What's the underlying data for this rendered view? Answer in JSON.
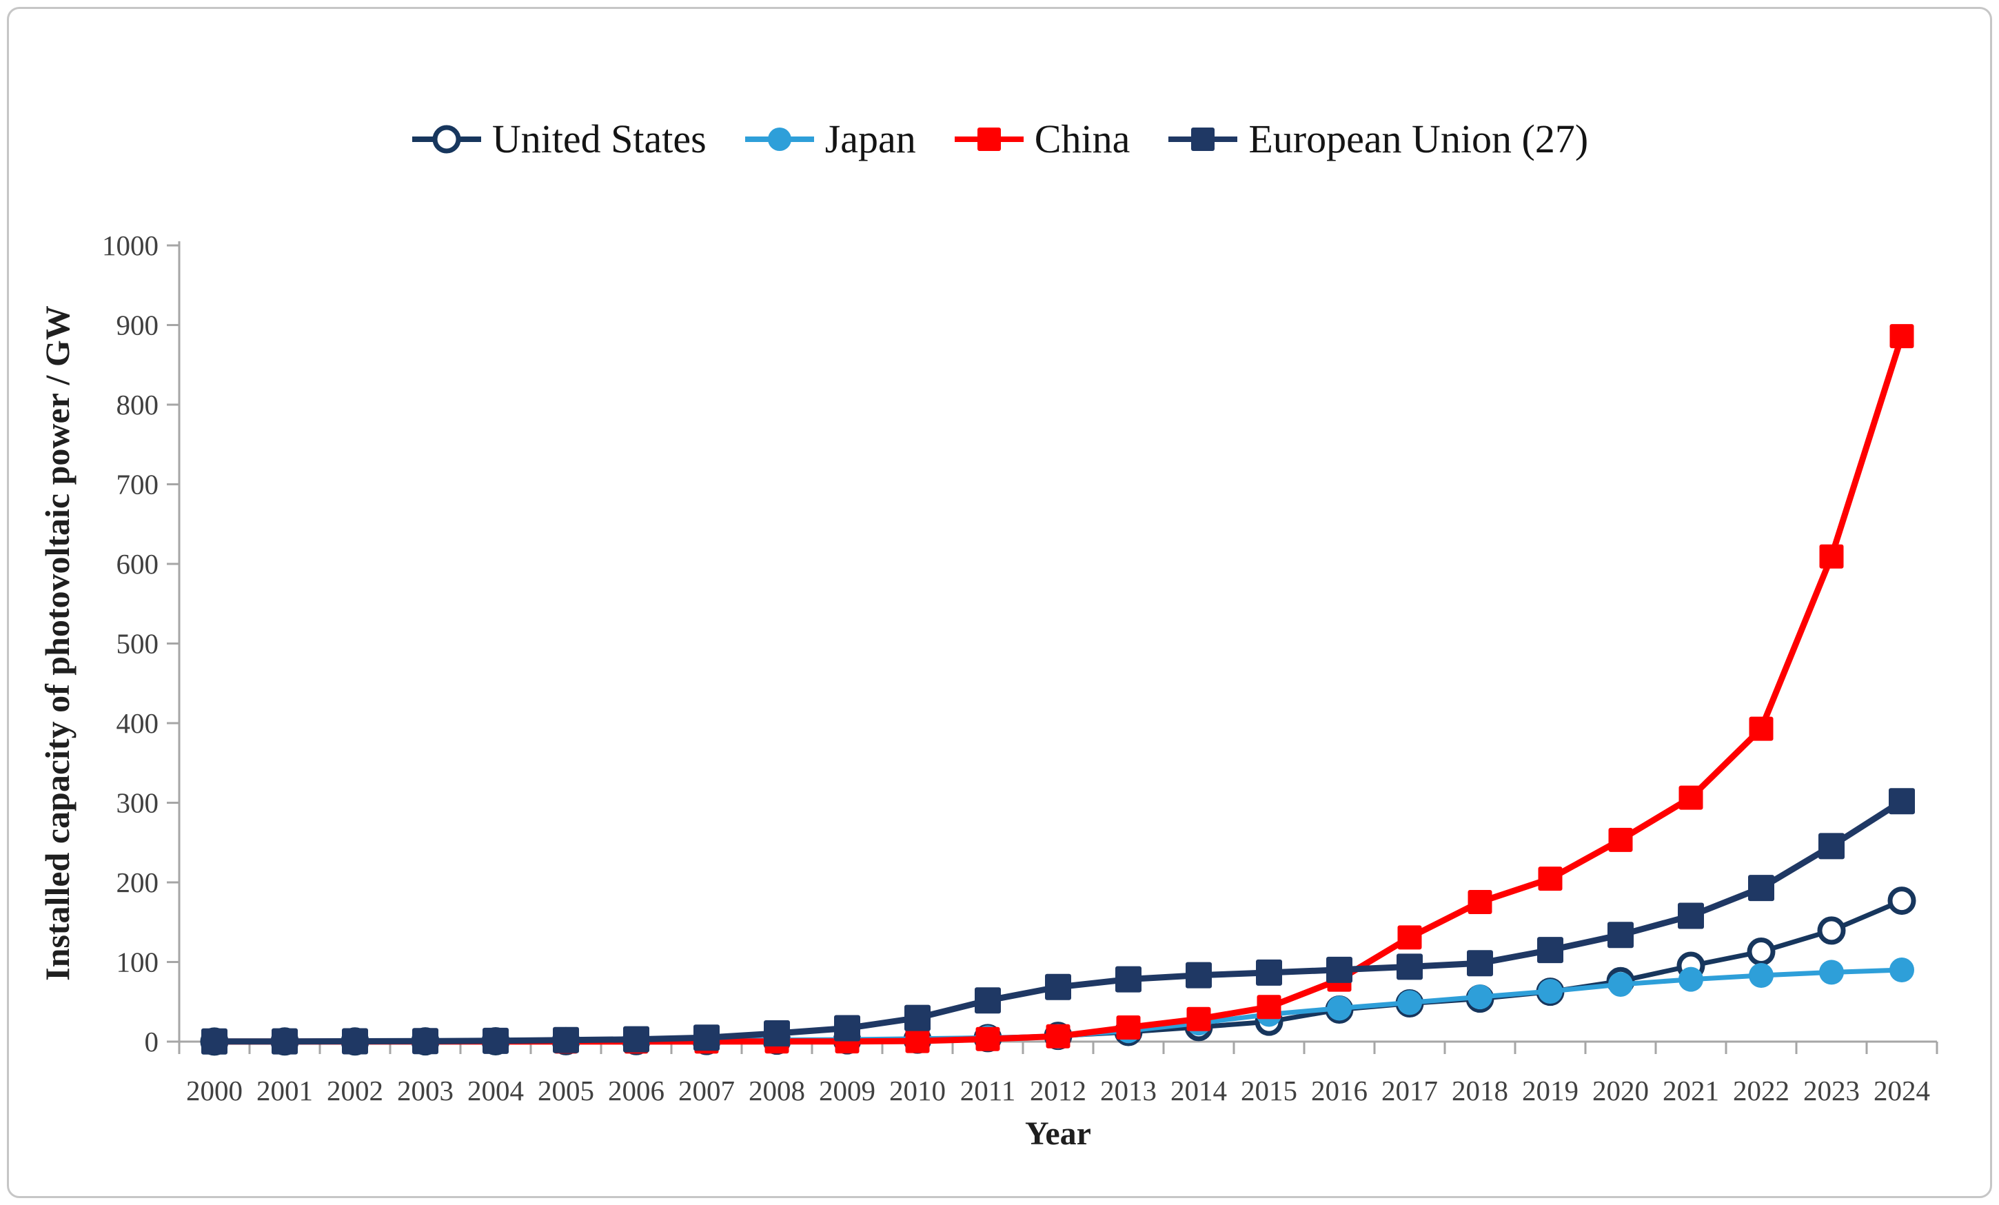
{
  "figure": {
    "background": "#ffffff",
    "border_color": "#c6c6c6",
    "axis_color": "#a6a6a6",
    "tick_label_color": "#404040",
    "axis_title_color": "#1f1f1f"
  },
  "chart_data": {
    "type": "line",
    "title": "",
    "xlabel": "Year",
    "ylabel": "Installed capacity of photovoltaic power / GW",
    "categories": [
      "2000",
      "2001",
      "2002",
      "2003",
      "2004",
      "2005",
      "2006",
      "2007",
      "2008",
      "2009",
      "2010",
      "2011",
      "2012",
      "2013",
      "2014",
      "2015",
      "2016",
      "2017",
      "2018",
      "2019",
      "2020",
      "2021",
      "2022",
      "2023",
      "2024"
    ],
    "ylim": [
      0,
      1000
    ],
    "ytick_step": 100,
    "grid": false,
    "legend_position": "top-center",
    "series": [
      {
        "name": "United States",
        "marker": "open-circle",
        "color": "#17365d",
        "line_width": 7,
        "marker_size": 34,
        "values": [
          0.1,
          0.2,
          0.2,
          0.3,
          0.4,
          0.5,
          0.6,
          0.8,
          1.2,
          1.6,
          2.5,
          4.4,
          7.2,
          12.1,
          18.3,
          25.0,
          40.3,
          48.0,
          54.0,
          62.7,
          76.0,
          95.2,
          113.0,
          139.5,
          177.0
        ]
      },
      {
        "name": "Japan",
        "marker": "filled-circle",
        "color": "#2e9fd9",
        "line_width": 7,
        "marker_size": 36,
        "values": [
          0.3,
          0.5,
          0.6,
          0.9,
          1.1,
          1.4,
          1.7,
          1.9,
          2.1,
          2.6,
          3.6,
          4.9,
          6.6,
          13.6,
          23.3,
          34.2,
          42.0,
          49.0,
          56.2,
          63.2,
          71.9,
          78.2,
          83.1,
          87.1,
          90.0
        ]
      },
      {
        "name": "China",
        "marker": "filled-square",
        "color": "#ff0000",
        "line_width": 9,
        "marker_size": 35,
        "values": [
          0.1,
          0.1,
          0.1,
          0.1,
          0.1,
          0.1,
          0.1,
          0.1,
          0.2,
          0.3,
          0.8,
          3.3,
          6.7,
          17.8,
          28.4,
          43.5,
          77.8,
          130.8,
          175.3,
          204.7,
          253.4,
          306.4,
          393.0,
          609.3,
          886.0
        ]
      },
      {
        "name": "European Union (27)",
        "marker": "filled-square",
        "color": "#1f3864",
        "line_width": 9,
        "marker_size": 38,
        "values": [
          0.2,
          0.3,
          0.4,
          0.6,
          1.0,
          1.9,
          2.9,
          5.0,
          10.4,
          16.9,
          29.8,
          51.7,
          68.6,
          78.3,
          83.4,
          86.7,
          90.2,
          94.0,
          98.5,
          115.0,
          134.0,
          158.0,
          193.0,
          245.6,
          302.0
        ]
      }
    ]
  }
}
